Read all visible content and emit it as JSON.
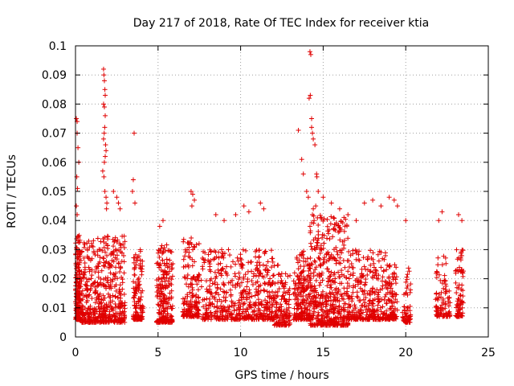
{
  "chart_data": {
    "type": "scatter",
    "title": "Day 217 of 2018, Rate Of TEC Index for receiver ktia",
    "xlabel": "GPS time / hours",
    "ylabel": "ROTI / TECUs",
    "xlim": [
      0,
      25
    ],
    "ylim": [
      0,
      0.1
    ],
    "grid": true,
    "marker": "+",
    "color": "#e00000",
    "x_ticks": [
      {
        "value": 0,
        "label": "0"
      },
      {
        "value": 5,
        "label": "5"
      },
      {
        "value": 10,
        "label": "10"
      },
      {
        "value": 15,
        "label": "15"
      },
      {
        "value": 20,
        "label": "20"
      },
      {
        "value": 25,
        "label": "25"
      }
    ],
    "y_ticks": [
      {
        "value": 0,
        "label": "0"
      },
      {
        "value": 0.01,
        "label": "0.01"
      },
      {
        "value": 0.02,
        "label": "0.02"
      },
      {
        "value": 0.03,
        "label": "0.03"
      },
      {
        "value": 0.04,
        "label": "0.04"
      },
      {
        "value": 0.05,
        "label": "0.05"
      },
      {
        "value": 0.06,
        "label": "0.06"
      },
      {
        "value": 0.07,
        "label": "0.07"
      },
      {
        "value": 0.08,
        "label": "0.08"
      },
      {
        "value": 0.09,
        "label": "0.09"
      },
      {
        "value": 0.1,
        "label": "0.1"
      }
    ],
    "clusters": [
      {
        "x": [
          0.0,
          0.3
        ],
        "y": [
          0.006,
          0.035
        ],
        "n": 180
      },
      {
        "x": [
          0.3,
          3.0
        ],
        "y": [
          0.005,
          0.035
        ],
        "n": 520
      },
      {
        "x": [
          3.5,
          4.1
        ],
        "y": [
          0.006,
          0.03
        ],
        "n": 130
      },
      {
        "x": [
          4.9,
          5.9
        ],
        "y": [
          0.005,
          0.032
        ],
        "n": 220
      },
      {
        "x": [
          6.5,
          7.5
        ],
        "y": [
          0.007,
          0.034
        ],
        "n": 160
      },
      {
        "x": [
          7.6,
          9.8
        ],
        "y": [
          0.006,
          0.03
        ],
        "n": 230
      },
      {
        "x": [
          9.8,
          12.0
        ],
        "y": [
          0.006,
          0.03
        ],
        "n": 290
      },
      {
        "x": [
          12.0,
          13.0
        ],
        "y": [
          0.004,
          0.025
        ],
        "n": 140
      },
      {
        "x": [
          13.2,
          14.2
        ],
        "y": [
          0.006,
          0.03
        ],
        "n": 200
      },
      {
        "x": [
          14.2,
          16.5
        ],
        "y": [
          0.004,
          0.042
        ],
        "n": 480
      },
      {
        "x": [
          16.5,
          18.8
        ],
        "y": [
          0.006,
          0.03
        ],
        "n": 300
      },
      {
        "x": [
          18.8,
          19.5
        ],
        "y": [
          0.006,
          0.025
        ],
        "n": 110
      },
      {
        "x": [
          19.8,
          20.3
        ],
        "y": [
          0.005,
          0.024
        ],
        "n": 60
      },
      {
        "x": [
          21.8,
          22.7
        ],
        "y": [
          0.007,
          0.028
        ],
        "n": 90
      },
      {
        "x": [
          23.0,
          23.5
        ],
        "y": [
          0.007,
          0.03
        ],
        "n": 80
      }
    ],
    "outliers": {
      "x": [
        0.05,
        0.1,
        0.1,
        0.15,
        0.2,
        0.08,
        0.12,
        0.05,
        0.1,
        1.7,
        1.72,
        1.75,
        1.78,
        1.8,
        1.7,
        1.75,
        1.8,
        1.77,
        1.74,
        1.7,
        1.82,
        1.85,
        1.8,
        1.75,
        1.65,
        1.72,
        1.78,
        1.85,
        1.9,
        1.88,
        3.55,
        3.5,
        3.45,
        3.6,
        7.0,
        7.1,
        7.2,
        7.05,
        13.5,
        13.7,
        13.8,
        14.0,
        14.1,
        14.2,
        14.25,
        14.22,
        14.15,
        14.3,
        14.3,
        14.35,
        14.4,
        14.5,
        14.6,
        14.62,
        14.7,
        14.55,
        14.4,
        14.35,
        14.45,
        14.2,
        15.0,
        15.5,
        16.0,
        16.5,
        17.0,
        17.5,
        18.0,
        18.5,
        19.0,
        19.3,
        19.5,
        20.0,
        22.0,
        22.2,
        23.2,
        23.4,
        2.3,
        2.5,
        2.6,
        2.7,
        11.2,
        11.4,
        10.2,
        10.5,
        8.5,
        9.0,
        9.7,
        5.3,
        5.1
      ],
      "y": [
        0.075,
        0.074,
        0.07,
        0.065,
        0.06,
        0.055,
        0.051,
        0.045,
        0.042,
        0.092,
        0.09,
        0.088,
        0.085,
        0.083,
        0.08,
        0.079,
        0.076,
        0.072,
        0.07,
        0.068,
        0.066,
        0.064,
        0.062,
        0.06,
        0.057,
        0.055,
        0.05,
        0.048,
        0.046,
        0.044,
        0.07,
        0.054,
        0.05,
        0.046,
        0.05,
        0.049,
        0.047,
        0.045,
        0.071,
        0.061,
        0.056,
        0.05,
        0.048,
        0.098,
        0.097,
        0.083,
        0.082,
        0.075,
        0.072,
        0.07,
        0.068,
        0.066,
        0.056,
        0.055,
        0.05,
        0.045,
        0.044,
        0.042,
        0.04,
        0.038,
        0.048,
        0.046,
        0.044,
        0.042,
        0.04,
        0.046,
        0.047,
        0.045,
        0.048,
        0.047,
        0.045,
        0.04,
        0.04,
        0.043,
        0.042,
        0.04,
        0.05,
        0.048,
        0.046,
        0.044,
        0.046,
        0.044,
        0.045,
        0.043,
        0.042,
        0.04,
        0.042,
        0.04,
        0.038
      ]
    }
  }
}
